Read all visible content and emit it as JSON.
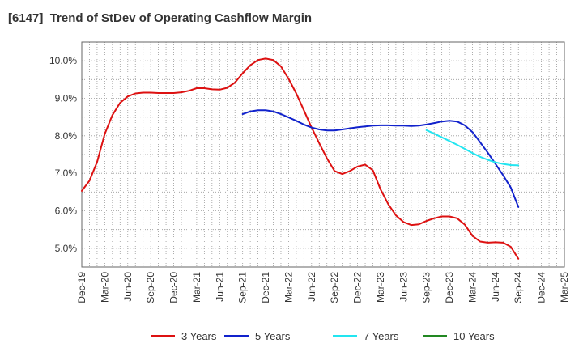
{
  "title": "[6147]  Trend of StDev of Operating Cashflow Margin",
  "chart_data": {
    "type": "line",
    "title": "[6147]  Trend of StDev of Operating Cashflow Margin",
    "xlabel": "",
    "ylabel": "",
    "x_ticks": [
      "Dec-19",
      "Mar-20",
      "Jun-20",
      "Sep-20",
      "Dec-20",
      "Mar-21",
      "Jun-21",
      "Sep-21",
      "Dec-21",
      "Mar-22",
      "Jun-22",
      "Sep-22",
      "Dec-22",
      "Mar-23",
      "Jun-23",
      "Sep-23",
      "Dec-23",
      "Mar-24",
      "Jun-24",
      "Sep-24",
      "Dec-24",
      "Mar-25"
    ],
    "y_ticks": [
      "5.0%",
      "6.0%",
      "7.0%",
      "8.0%",
      "9.0%",
      "10.0%"
    ],
    "ylim": [
      4.5,
      10.5
    ],
    "grid": true,
    "legend_position": "bottom",
    "series": [
      {
        "name": "3 Years",
        "color": "#dd1111",
        "x": [
          "Dec-19",
          "Jan-20",
          "Feb-20",
          "Mar-20",
          "Apr-20",
          "May-20",
          "Jun-20",
          "Jul-20",
          "Aug-20",
          "Sep-20",
          "Oct-20",
          "Nov-20",
          "Dec-20",
          "Jan-21",
          "Feb-21",
          "Mar-21",
          "Apr-21",
          "May-21",
          "Jun-21",
          "Jul-21",
          "Aug-21",
          "Sep-21",
          "Oct-21",
          "Nov-21",
          "Dec-21",
          "Jan-22",
          "Feb-22",
          "Mar-22",
          "Apr-22",
          "May-22",
          "Jun-22",
          "Jul-22",
          "Aug-22",
          "Sep-22",
          "Oct-22",
          "Nov-22",
          "Dec-22",
          "Jan-23",
          "Feb-23",
          "Mar-23",
          "Apr-23",
          "May-23",
          "Jun-23",
          "Jul-23",
          "Aug-23",
          "Sep-23",
          "Oct-23",
          "Nov-23",
          "Dec-23",
          "Jan-24",
          "Feb-24",
          "Mar-24",
          "Apr-24",
          "May-24",
          "Jun-24",
          "Jul-24",
          "Aug-24",
          "Sep-24"
        ],
        "values": [
          6.53,
          6.8,
          7.3,
          8.05,
          8.55,
          8.88,
          9.05,
          9.13,
          9.15,
          9.15,
          9.14,
          9.14,
          9.14,
          9.16,
          9.2,
          9.27,
          9.27,
          9.24,
          9.23,
          9.28,
          9.42,
          9.67,
          9.88,
          10.02,
          10.06,
          10.02,
          9.85,
          9.52,
          9.13,
          8.68,
          8.22,
          7.8,
          7.4,
          7.06,
          6.98,
          7.06,
          7.18,
          7.23,
          7.08,
          6.57,
          6.18,
          5.88,
          5.7,
          5.62,
          5.64,
          5.73,
          5.8,
          5.85,
          5.85,
          5.8,
          5.63,
          5.33,
          5.18,
          5.15,
          5.16,
          5.15,
          5.04,
          4.72
        ]
      },
      {
        "name": "5 Years",
        "color": "#1122cc",
        "x": [
          "Sep-21",
          "Oct-21",
          "Nov-21",
          "Dec-21",
          "Jan-22",
          "Feb-22",
          "Mar-22",
          "Apr-22",
          "May-22",
          "Jun-22",
          "Jul-22",
          "Aug-22",
          "Sep-22",
          "Oct-22",
          "Nov-22",
          "Dec-22",
          "Jan-23",
          "Feb-23",
          "Mar-23",
          "Apr-23",
          "May-23",
          "Jun-23",
          "Jul-23",
          "Aug-23",
          "Sep-23",
          "Oct-23",
          "Nov-23",
          "Dec-23",
          "Jan-24",
          "Feb-24",
          "Mar-24",
          "Apr-24",
          "May-24",
          "Jun-24",
          "Jul-24",
          "Aug-24",
          "Sep-24"
        ],
        "values": [
          8.58,
          8.65,
          8.68,
          8.68,
          8.65,
          8.58,
          8.49,
          8.4,
          8.3,
          8.22,
          8.17,
          8.14,
          8.14,
          8.17,
          8.2,
          8.23,
          8.25,
          8.27,
          8.28,
          8.28,
          8.27,
          8.27,
          8.26,
          8.27,
          8.3,
          8.34,
          8.38,
          8.4,
          8.38,
          8.28,
          8.1,
          7.83,
          7.55,
          7.25,
          6.95,
          6.62,
          6.1
        ]
      },
      {
        "name": "7 Years",
        "color": "#22e5f0",
        "x": [
          "Sep-23",
          "Oct-23",
          "Nov-23",
          "Dec-23",
          "Jan-24",
          "Feb-24",
          "Mar-24",
          "Apr-24",
          "May-24",
          "Jun-24",
          "Jul-24",
          "Aug-24",
          "Sep-24"
        ],
        "values": [
          8.15,
          8.06,
          7.96,
          7.86,
          7.76,
          7.65,
          7.54,
          7.44,
          7.36,
          7.29,
          7.25,
          7.22,
          7.21
        ]
      },
      {
        "name": "10 Years",
        "color": "#228822",
        "x": [],
        "values": []
      }
    ]
  }
}
